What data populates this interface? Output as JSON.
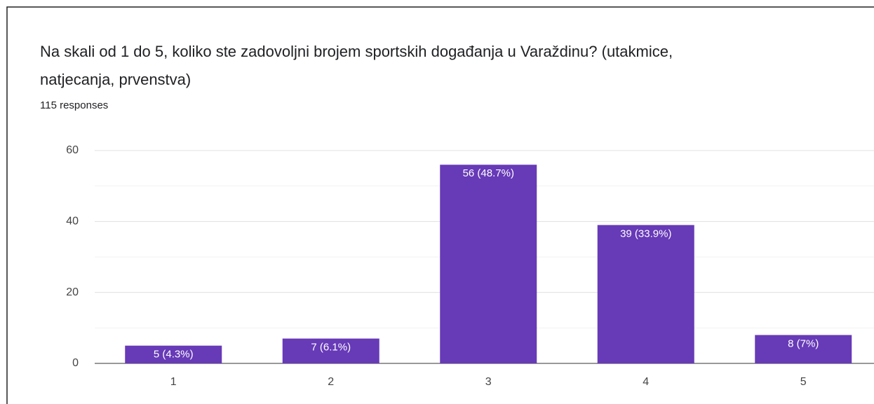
{
  "chart_data": {
    "type": "bar",
    "title": [
      "Na skali od 1 do 5, koliko ste zadovoljni brojem sportskih događanja u Varaždinu? (utakmice,",
      "natjecanja, prvenstva)"
    ],
    "subtitle": "115 responses",
    "categories": [
      "1",
      "2",
      "3",
      "4",
      "5"
    ],
    "values": [
      5,
      7,
      56,
      39,
      8
    ],
    "value_labels": [
      "5 (4.3%)",
      "7 (6.1%)",
      "56 (48.7%)",
      "39 (33.9%)",
      "8 (7%)"
    ],
    "color": "#673ab7",
    "ylim": [
      0,
      60
    ],
    "yticks": [
      0,
      20,
      40,
      60
    ],
    "minor_yticks": [
      10,
      30,
      50
    ],
    "grid": true
  }
}
